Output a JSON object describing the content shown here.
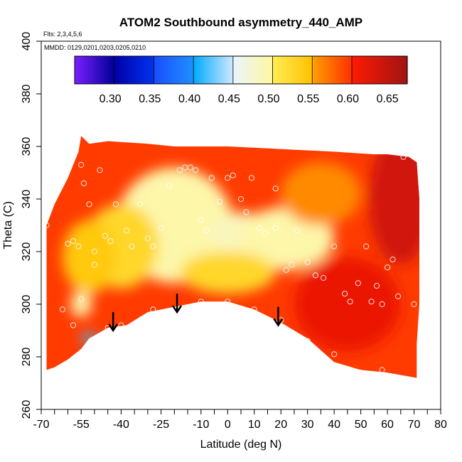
{
  "chart_data": {
    "type": "heatmap",
    "title": "ATOM2 Southbound asymmetry_440_AMP",
    "subtitle_flights": "Flts: 2,3,4,5,6",
    "subtitle_dates": "MMDD: 0129,0201,0203,0205,0210",
    "xlabel": "Latitude (deg N)",
    "ylabel": "Theta (C)",
    "xlim": [
      -70,
      80
    ],
    "ylim": [
      260,
      400
    ],
    "x_ticks": [
      -70,
      -55,
      -40,
      -25,
      -10,
      0,
      10,
      20,
      30,
      40,
      50,
      60,
      70,
      80
    ],
    "x_tick_labels": [
      "-70",
      "-55",
      "-40",
      "-25",
      "-10",
      "0",
      "10",
      "20",
      "30",
      "40",
      "50",
      "60",
      "70",
      "80"
    ],
    "x_minor_ticks": [
      -65,
      -60,
      -50,
      -45,
      -35,
      -30,
      -20,
      -15,
      -5,
      5,
      15,
      25,
      35,
      45,
      55,
      65,
      75
    ],
    "y_ticks": [
      260,
      280,
      300,
      320,
      340,
      360,
      380,
      400
    ],
    "y_tick_labels": [
      "260",
      "280",
      "300",
      "320",
      "340",
      "360",
      "380",
      "400"
    ],
    "colorbar": {
      "range": [
        0.255,
        0.675
      ],
      "ticks": [
        0.3,
        0.35,
        0.4,
        0.45,
        0.5,
        0.55,
        0.6,
        0.65
      ],
      "tick_labels": [
        "0.30",
        "0.35",
        "0.40",
        "0.45",
        "0.50",
        "0.55",
        "0.60",
        "0.65"
      ],
      "bands": [
        {
          "from": 0.255,
          "to": 0.305,
          "colors": [
            "#7a1fff",
            "#000099"
          ]
        },
        {
          "from": 0.305,
          "to": 0.355,
          "colors": [
            "#0000a8",
            "#0033ee"
          ]
        },
        {
          "from": 0.355,
          "to": 0.405,
          "colors": [
            "#1a4dff",
            "#1e90ff"
          ]
        },
        {
          "from": 0.405,
          "to": 0.455,
          "colors": [
            "#00aaff",
            "#cfe8ff"
          ]
        },
        {
          "from": 0.455,
          "to": 0.505,
          "colors": [
            "#eaf4ff",
            "#fff7a0"
          ]
        },
        {
          "from": 0.505,
          "to": 0.555,
          "colors": [
            "#ffee55",
            "#ffc000"
          ]
        },
        {
          "from": 0.555,
          "to": 0.605,
          "colors": [
            "#ffa000",
            "#ff3000"
          ]
        },
        {
          "from": 0.605,
          "to": 0.675,
          "colors": [
            "#ff1a00",
            "#a01414"
          ]
        }
      ]
    },
    "field_default_value": 0.6,
    "field_blobs": [
      {
        "lat": -20,
        "theta": 330,
        "value": 0.5,
        "rx": 22,
        "ry": 22
      },
      {
        "lat": 5,
        "theta": 327,
        "value": 0.49,
        "rx": 12,
        "ry": 8
      },
      {
        "lat": 22,
        "theta": 325,
        "value": 0.5,
        "rx": 18,
        "ry": 12
      },
      {
        "lat": -40,
        "theta": 322,
        "value": 0.53,
        "rx": 14,
        "ry": 16
      },
      {
        "lat": -52,
        "theta": 318,
        "value": 0.545,
        "rx": 10,
        "ry": 14
      },
      {
        "lat": -55,
        "theta": 300,
        "value": 0.5,
        "rx": 4,
        "ry": 5
      },
      {
        "lat": -52,
        "theta": 287,
        "value": 0.42,
        "rx": 3,
        "ry": 2
      },
      {
        "lat": 0,
        "theta": 312,
        "value": 0.53,
        "rx": 18,
        "ry": 8
      },
      {
        "lat": 65,
        "theta": 340,
        "value": 0.64,
        "rx": 12,
        "ry": 25
      },
      {
        "lat": 45,
        "theta": 300,
        "value": 0.62,
        "rx": 20,
        "ry": 18
      },
      {
        "lat": 35,
        "theta": 342,
        "value": 0.565,
        "rx": 15,
        "ry": 12
      }
    ],
    "outline": {
      "top": [
        [
          -68,
          330
        ],
        [
          -65,
          338
        ],
        [
          -60,
          348
        ],
        [
          -56,
          358
        ],
        [
          -55,
          364
        ],
        [
          -52,
          361
        ],
        [
          -45,
          362
        ],
        [
          -30,
          361
        ],
        [
          -20,
          360
        ],
        [
          0,
          360
        ],
        [
          20,
          359
        ],
        [
          40,
          358
        ],
        [
          55,
          357
        ],
        [
          60,
          357
        ],
        [
          68,
          356
        ]
      ],
      "right": [
        [
          68,
          356
        ],
        [
          71,
          354
        ],
        [
          72,
          340
        ],
        [
          72,
          320
        ],
        [
          72,
          300
        ],
        [
          71,
          285
        ],
        [
          71,
          272
        ]
      ],
      "bottom": [
        [
          71,
          272
        ],
        [
          60,
          274
        ],
        [
          50,
          275
        ],
        [
          40,
          278
        ],
        [
          30,
          287
        ],
        [
          20,
          293
        ],
        [
          10,
          298
        ],
        [
          0,
          301
        ],
        [
          -10,
          301
        ],
        [
          -20,
          299
        ],
        [
          -30,
          297
        ],
        [
          -38,
          292
        ],
        [
          -45,
          291
        ],
        [
          -52,
          287
        ],
        [
          -55,
          283
        ],
        [
          -60,
          279
        ],
        [
          -65,
          276
        ],
        [
          -68,
          275
        ]
      ]
    },
    "observation_points": [
      {
        "lat": -68,
        "theta": 330
      },
      {
        "lat": -67,
        "theta": 336
      },
      {
        "lat": -60,
        "theta": 323
      },
      {
        "lat": -58,
        "theta": 324
      },
      {
        "lat": -56,
        "theta": 322
      },
      {
        "lat": -55,
        "theta": 353
      },
      {
        "lat": -54,
        "theta": 346
      },
      {
        "lat": -52,
        "theta": 338
      },
      {
        "lat": -50,
        "theta": 320
      },
      {
        "lat": -50,
        "theta": 315
      },
      {
        "lat": -48,
        "theta": 351
      },
      {
        "lat": -46,
        "theta": 326
      },
      {
        "lat": -44,
        "theta": 324
      },
      {
        "lat": -42,
        "theta": 338
      },
      {
        "lat": -38,
        "theta": 328
      },
      {
        "lat": -36,
        "theta": 322
      },
      {
        "lat": -33,
        "theta": 338
      },
      {
        "lat": -30,
        "theta": 325
      },
      {
        "lat": -28,
        "theta": 322
      },
      {
        "lat": -25,
        "theta": 329
      },
      {
        "lat": -22,
        "theta": 345
      },
      {
        "lat": -18,
        "theta": 351
      },
      {
        "lat": -16,
        "theta": 352
      },
      {
        "lat": -14,
        "theta": 352
      },
      {
        "lat": -12,
        "theta": 351
      },
      {
        "lat": -10,
        "theta": 332
      },
      {
        "lat": -8,
        "theta": 328
      },
      {
        "lat": -6,
        "theta": 348
      },
      {
        "lat": -3,
        "theta": 339
      },
      {
        "lat": 0,
        "theta": 348
      },
      {
        "lat": 2,
        "theta": 349
      },
      {
        "lat": 5,
        "theta": 340
      },
      {
        "lat": 7,
        "theta": 335
      },
      {
        "lat": 9,
        "theta": 348
      },
      {
        "lat": 12,
        "theta": 329
      },
      {
        "lat": 14,
        "theta": 327
      },
      {
        "lat": 18,
        "theta": 329
      },
      {
        "lat": 18,
        "theta": 344
      },
      {
        "lat": 22,
        "theta": 313
      },
      {
        "lat": 24,
        "theta": 315
      },
      {
        "lat": 26,
        "theta": 328
      },
      {
        "lat": 30,
        "theta": 316
      },
      {
        "lat": 33,
        "theta": 311
      },
      {
        "lat": 36,
        "theta": 310
      },
      {
        "lat": 40,
        "theta": 322
      },
      {
        "lat": 44,
        "theta": 304
      },
      {
        "lat": 46,
        "theta": 301
      },
      {
        "lat": 49,
        "theta": 308
      },
      {
        "lat": 52,
        "theta": 322
      },
      {
        "lat": 54,
        "theta": 301
      },
      {
        "lat": 56,
        "theta": 307
      },
      {
        "lat": 58,
        "theta": 300
      },
      {
        "lat": 60,
        "theta": 314
      },
      {
        "lat": 62,
        "theta": 317
      },
      {
        "lat": 64,
        "theta": 303
      },
      {
        "lat": 66,
        "theta": 356
      },
      {
        "lat": 70,
        "theta": 300
      },
      {
        "lat": -62,
        "theta": 298
      },
      {
        "lat": -58,
        "theta": 292
      },
      {
        "lat": -55,
        "theta": 302
      },
      {
        "lat": -45,
        "theta": 291
      },
      {
        "lat": -40,
        "theta": 292
      },
      {
        "lat": -28,
        "theta": 298
      },
      {
        "lat": -10,
        "theta": 301
      },
      {
        "lat": 0,
        "theta": 301
      },
      {
        "lat": 10,
        "theta": 298
      },
      {
        "lat": 20,
        "theta": 294
      },
      {
        "lat": 30,
        "theta": 286
      },
      {
        "lat": 40,
        "theta": 281
      },
      {
        "lat": 50,
        "theta": 274
      },
      {
        "lat": 58,
        "theta": 275
      }
    ],
    "arrows": [
      {
        "lat": -43,
        "theta_from": 297,
        "theta_to": 290
      },
      {
        "lat": -19,
        "theta_from": 304,
        "theta_to": 297
      },
      {
        "lat": 19,
        "theta_from": 299,
        "theta_to": 292
      }
    ]
  }
}
